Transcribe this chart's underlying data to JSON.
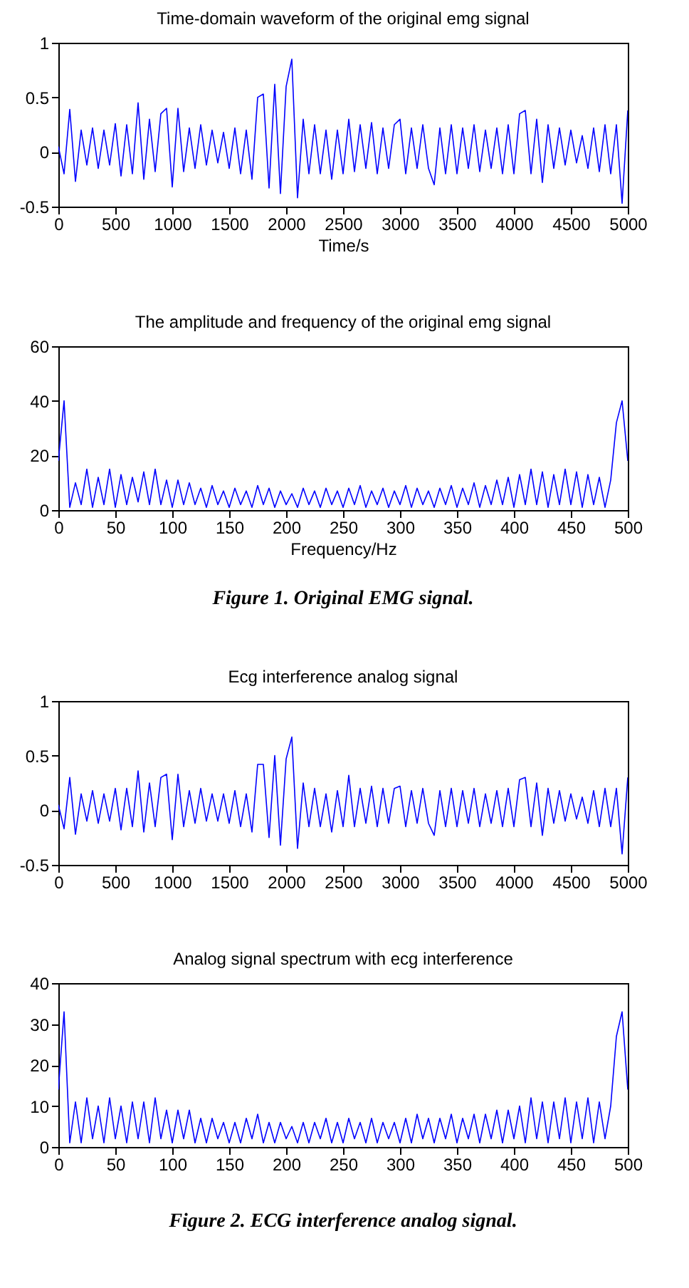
{
  "chart_data": [
    {
      "type": "line",
      "title": "Time-domain waveform of the original emg signal",
      "xlabel": "Time/s",
      "xlim": [
        0,
        5000
      ],
      "xticks": [
        0,
        500,
        1000,
        1500,
        2000,
        2500,
        3000,
        3500,
        4000,
        4500,
        5000
      ],
      "ylim": [
        -0.5,
        1
      ],
      "yticks": [
        -0.5,
        0,
        0.5,
        1
      ],
      "grid": false,
      "legend": false,
      "marker": "none",
      "line_style": "solid",
      "series": [
        {
          "color": "#0000ff",
          "x": [
            0,
            50,
            100,
            150,
            200,
            250,
            300,
            350,
            400,
            450,
            500,
            550,
            600,
            650,
            700,
            750,
            800,
            850,
            900,
            950,
            1000,
            1050,
            1100,
            1150,
            1200,
            1250,
            1300,
            1350,
            1400,
            1450,
            1500,
            1550,
            1600,
            1650,
            1700,
            1750,
            1800,
            1850,
            1900,
            1950,
            2000,
            2050,
            2100,
            2150,
            2200,
            2250,
            2300,
            2350,
            2400,
            2450,
            2500,
            2550,
            2600,
            2650,
            2700,
            2750,
            2800,
            2850,
            2900,
            2950,
            3000,
            3050,
            3100,
            3150,
            3200,
            3250,
            3300,
            3350,
            3400,
            3450,
            3500,
            3550,
            3600,
            3650,
            3700,
            3750,
            3800,
            3850,
            3900,
            3950,
            4000,
            4050,
            4100,
            4150,
            4200,
            4250,
            4300,
            4350,
            4400,
            4450,
            4500,
            4550,
            4600,
            4650,
            4700,
            4750,
            4800,
            4850,
            4900,
            4950,
            5000
          ],
          "values": [
            0.05,
            -0.2,
            0.39,
            -0.27,
            0.2,
            -0.12,
            0.22,
            -0.15,
            0.2,
            -0.12,
            0.26,
            -0.22,
            0.25,
            -0.2,
            0.45,
            -0.25,
            0.3,
            -0.18,
            0.35,
            0.4,
            -0.32,
            0.4,
            -0.18,
            0.22,
            -0.15,
            0.25,
            -0.12,
            0.2,
            -0.1,
            0.18,
            -0.15,
            0.22,
            -0.2,
            0.2,
            -0.25,
            0.5,
            0.53,
            -0.33,
            0.62,
            -0.38,
            0.6,
            0.85,
            -0.42,
            0.3,
            -0.2,
            0.25,
            -0.2,
            0.2,
            -0.25,
            0.2,
            -0.2,
            0.3,
            -0.18,
            0.25,
            -0.15,
            0.27,
            -0.2,
            0.22,
            -0.15,
            0.25,
            0.3,
            -0.2,
            0.22,
            -0.15,
            0.25,
            -0.15,
            -0.3,
            0.22,
            -0.2,
            0.25,
            -0.2,
            0.22,
            -0.15,
            0.25,
            -0.18,
            0.2,
            -0.15,
            0.22,
            -0.2,
            0.25,
            -0.2,
            0.35,
            0.38,
            -0.2,
            0.3,
            -0.28,
            0.25,
            -0.15,
            0.22,
            -0.12,
            0.2,
            -0.1,
            0.15,
            -0.15,
            0.22,
            -0.18,
            0.25,
            -0.2,
            0.25,
            -0.47,
            0.38
          ]
        }
      ]
    },
    {
      "type": "line",
      "title": "The amplitude and frequency of the original emg signal",
      "xlabel": "Frequency/Hz",
      "xlim": [
        0,
        500
      ],
      "xticks": [
        0,
        50,
        100,
        150,
        200,
        250,
        300,
        350,
        400,
        450,
        500
      ],
      "ylim": [
        0,
        60
      ],
      "yticks": [
        0,
        20,
        40,
        60
      ],
      "grid": false,
      "legend": false,
      "marker": "none",
      "line_style": "solid",
      "annotations": [
        "Figure 1. Original EMG signal."
      ],
      "series": [
        {
          "color": "#0000ff",
          "x": [
            0,
            5,
            10,
            15,
            20,
            25,
            30,
            35,
            40,
            45,
            50,
            55,
            60,
            65,
            70,
            75,
            80,
            85,
            90,
            95,
            100,
            105,
            110,
            115,
            120,
            125,
            130,
            135,
            140,
            145,
            150,
            155,
            160,
            165,
            170,
            175,
            180,
            185,
            190,
            195,
            200,
            205,
            210,
            215,
            220,
            225,
            230,
            235,
            240,
            245,
            250,
            255,
            260,
            265,
            270,
            275,
            280,
            285,
            290,
            295,
            300,
            305,
            310,
            315,
            320,
            325,
            330,
            335,
            340,
            345,
            350,
            355,
            360,
            365,
            370,
            375,
            380,
            385,
            390,
            395,
            400,
            405,
            410,
            415,
            420,
            425,
            430,
            435,
            440,
            445,
            450,
            455,
            460,
            465,
            470,
            475,
            480,
            485,
            490,
            495,
            500
          ],
          "values": [
            18,
            40,
            1,
            10,
            2,
            15,
            1,
            12,
            2,
            15,
            1,
            13,
            2,
            12,
            3,
            14,
            2,
            15,
            2,
            11,
            1,
            11,
            2,
            10,
            2,
            8,
            1,
            9,
            2,
            7,
            1,
            8,
            2,
            7,
            1,
            9,
            2,
            8,
            1,
            7,
            2,
            6,
            1,
            8,
            2,
            7,
            1,
            8,
            2,
            7,
            1,
            8,
            2,
            9,
            1,
            7,
            2,
            8,
            1,
            7,
            2,
            9,
            1,
            8,
            2,
            7,
            1,
            8,
            2,
            9,
            1,
            8,
            2,
            10,
            1,
            9,
            2,
            11,
            2,
            12,
            1,
            13,
            2,
            15,
            2,
            14,
            1,
            13,
            2,
            15,
            2,
            14,
            1,
            13,
            2,
            12,
            1,
            11,
            32,
            40,
            18
          ]
        }
      ]
    },
    {
      "type": "line",
      "title": "Ecg interference analog signal",
      "xlim": [
        0,
        5000
      ],
      "xticks": [
        0,
        500,
        1000,
        1500,
        2000,
        2500,
        3000,
        3500,
        4000,
        4500,
        5000
      ],
      "ylim": [
        -0.5,
        1
      ],
      "yticks": [
        -0.5,
        0,
        0.5,
        1
      ],
      "grid": false,
      "legend": false,
      "marker": "none",
      "line_style": "solid",
      "series": [
        {
          "color": "#0000ff",
          "x": [
            0,
            50,
            100,
            150,
            200,
            250,
            300,
            350,
            400,
            450,
            500,
            550,
            600,
            650,
            700,
            750,
            800,
            850,
            900,
            950,
            1000,
            1050,
            1100,
            1150,
            1200,
            1250,
            1300,
            1350,
            1400,
            1450,
            1500,
            1550,
            1600,
            1650,
            1700,
            1750,
            1800,
            1850,
            1900,
            1950,
            2000,
            2050,
            2100,
            2150,
            2200,
            2250,
            2300,
            2350,
            2400,
            2450,
            2500,
            2550,
            2600,
            2650,
            2700,
            2750,
            2800,
            2850,
            2900,
            2950,
            3000,
            3050,
            3100,
            3150,
            3200,
            3250,
            3300,
            3350,
            3400,
            3450,
            3500,
            3550,
            3600,
            3650,
            3700,
            3750,
            3800,
            3850,
            3900,
            3950,
            4000,
            4050,
            4100,
            4150,
            4200,
            4250,
            4300,
            4350,
            4400,
            4450,
            4500,
            4550,
            4600,
            4650,
            4700,
            4750,
            4800,
            4850,
            4900,
            4950,
            5000
          ],
          "values": [
            0.05,
            -0.17,
            0.3,
            -0.22,
            0.15,
            -0.1,
            0.18,
            -0.12,
            0.15,
            -0.1,
            0.2,
            -0.18,
            0.2,
            -0.15,
            0.36,
            -0.2,
            0.25,
            -0.15,
            0.3,
            0.33,
            -0.27,
            0.33,
            -0.15,
            0.18,
            -0.12,
            0.2,
            -0.1,
            0.15,
            -0.1,
            0.15,
            -0.12,
            0.18,
            -0.15,
            0.15,
            -0.2,
            0.42,
            0.42,
            -0.25,
            0.5,
            -0.32,
            0.47,
            0.67,
            -0.35,
            0.25,
            -0.15,
            0.2,
            -0.15,
            0.15,
            -0.2,
            0.18,
            -0.15,
            0.32,
            -0.15,
            0.2,
            -0.12,
            0.22,
            -0.15,
            0.2,
            -0.12,
            0.2,
            0.22,
            -0.15,
            0.18,
            -0.12,
            0.2,
            -0.12,
            -0.23,
            0.18,
            -0.15,
            0.2,
            -0.15,
            0.18,
            -0.12,
            0.2,
            -0.15,
            0.15,
            -0.12,
            0.18,
            -0.15,
            0.2,
            -0.15,
            0.28,
            0.3,
            -0.15,
            0.25,
            -0.23,
            0.2,
            -0.12,
            0.18,
            -0.1,
            0.15,
            -0.08,
            0.12,
            -0.12,
            0.18,
            -0.15,
            0.2,
            -0.15,
            0.2,
            -0.4,
            0.3
          ]
        }
      ]
    },
    {
      "type": "line",
      "title": "Analog signal spectrum with ecg interference",
      "xlim": [
        0,
        500
      ],
      "xticks": [
        0,
        50,
        100,
        150,
        200,
        250,
        300,
        350,
        400,
        450,
        500
      ],
      "ylim": [
        0,
        40
      ],
      "yticks": [
        0,
        10,
        20,
        30,
        40
      ],
      "grid": false,
      "legend": false,
      "marker": "none",
      "line_style": "solid",
      "annotations": [
        "Figure 2. ECG interference analog signal."
      ],
      "series": [
        {
          "color": "#0000ff",
          "x": [
            0,
            5,
            10,
            15,
            20,
            25,
            30,
            35,
            40,
            45,
            50,
            55,
            60,
            65,
            70,
            75,
            80,
            85,
            90,
            95,
            100,
            105,
            110,
            115,
            120,
            125,
            130,
            135,
            140,
            145,
            150,
            155,
            160,
            165,
            170,
            175,
            180,
            185,
            190,
            195,
            200,
            205,
            210,
            215,
            220,
            225,
            230,
            235,
            240,
            245,
            250,
            255,
            260,
            265,
            270,
            275,
            280,
            285,
            290,
            295,
            300,
            305,
            310,
            315,
            320,
            325,
            330,
            335,
            340,
            345,
            350,
            355,
            360,
            365,
            370,
            375,
            380,
            385,
            390,
            395,
            400,
            405,
            410,
            415,
            420,
            425,
            430,
            435,
            440,
            445,
            450,
            455,
            460,
            465,
            470,
            475,
            480,
            485,
            490,
            495,
            500
          ],
          "values": [
            14,
            33,
            1,
            11,
            1,
            12,
            2,
            10,
            1,
            12,
            2,
            10,
            1,
            11,
            2,
            11,
            1,
            12,
            2,
            9,
            1,
            9,
            2,
            9,
            1,
            7,
            1,
            7,
            2,
            6,
            1,
            6,
            1,
            7,
            2,
            8,
            1,
            6,
            1,
            6,
            2,
            5,
            1,
            6,
            1,
            6,
            2,
            7,
            1,
            6,
            1,
            7,
            2,
            6,
            1,
            7,
            1,
            6,
            2,
            6,
            1,
            7,
            1,
            8,
            2,
            7,
            1,
            7,
            2,
            8,
            1,
            7,
            2,
            8,
            1,
            8,
            2,
            9,
            1,
            9,
            2,
            10,
            1,
            12,
            2,
            11,
            1,
            11,
            2,
            12,
            1,
            11,
            2,
            12,
            1,
            11,
            2,
            10,
            27,
            33,
            14
          ]
        }
      ]
    }
  ]
}
